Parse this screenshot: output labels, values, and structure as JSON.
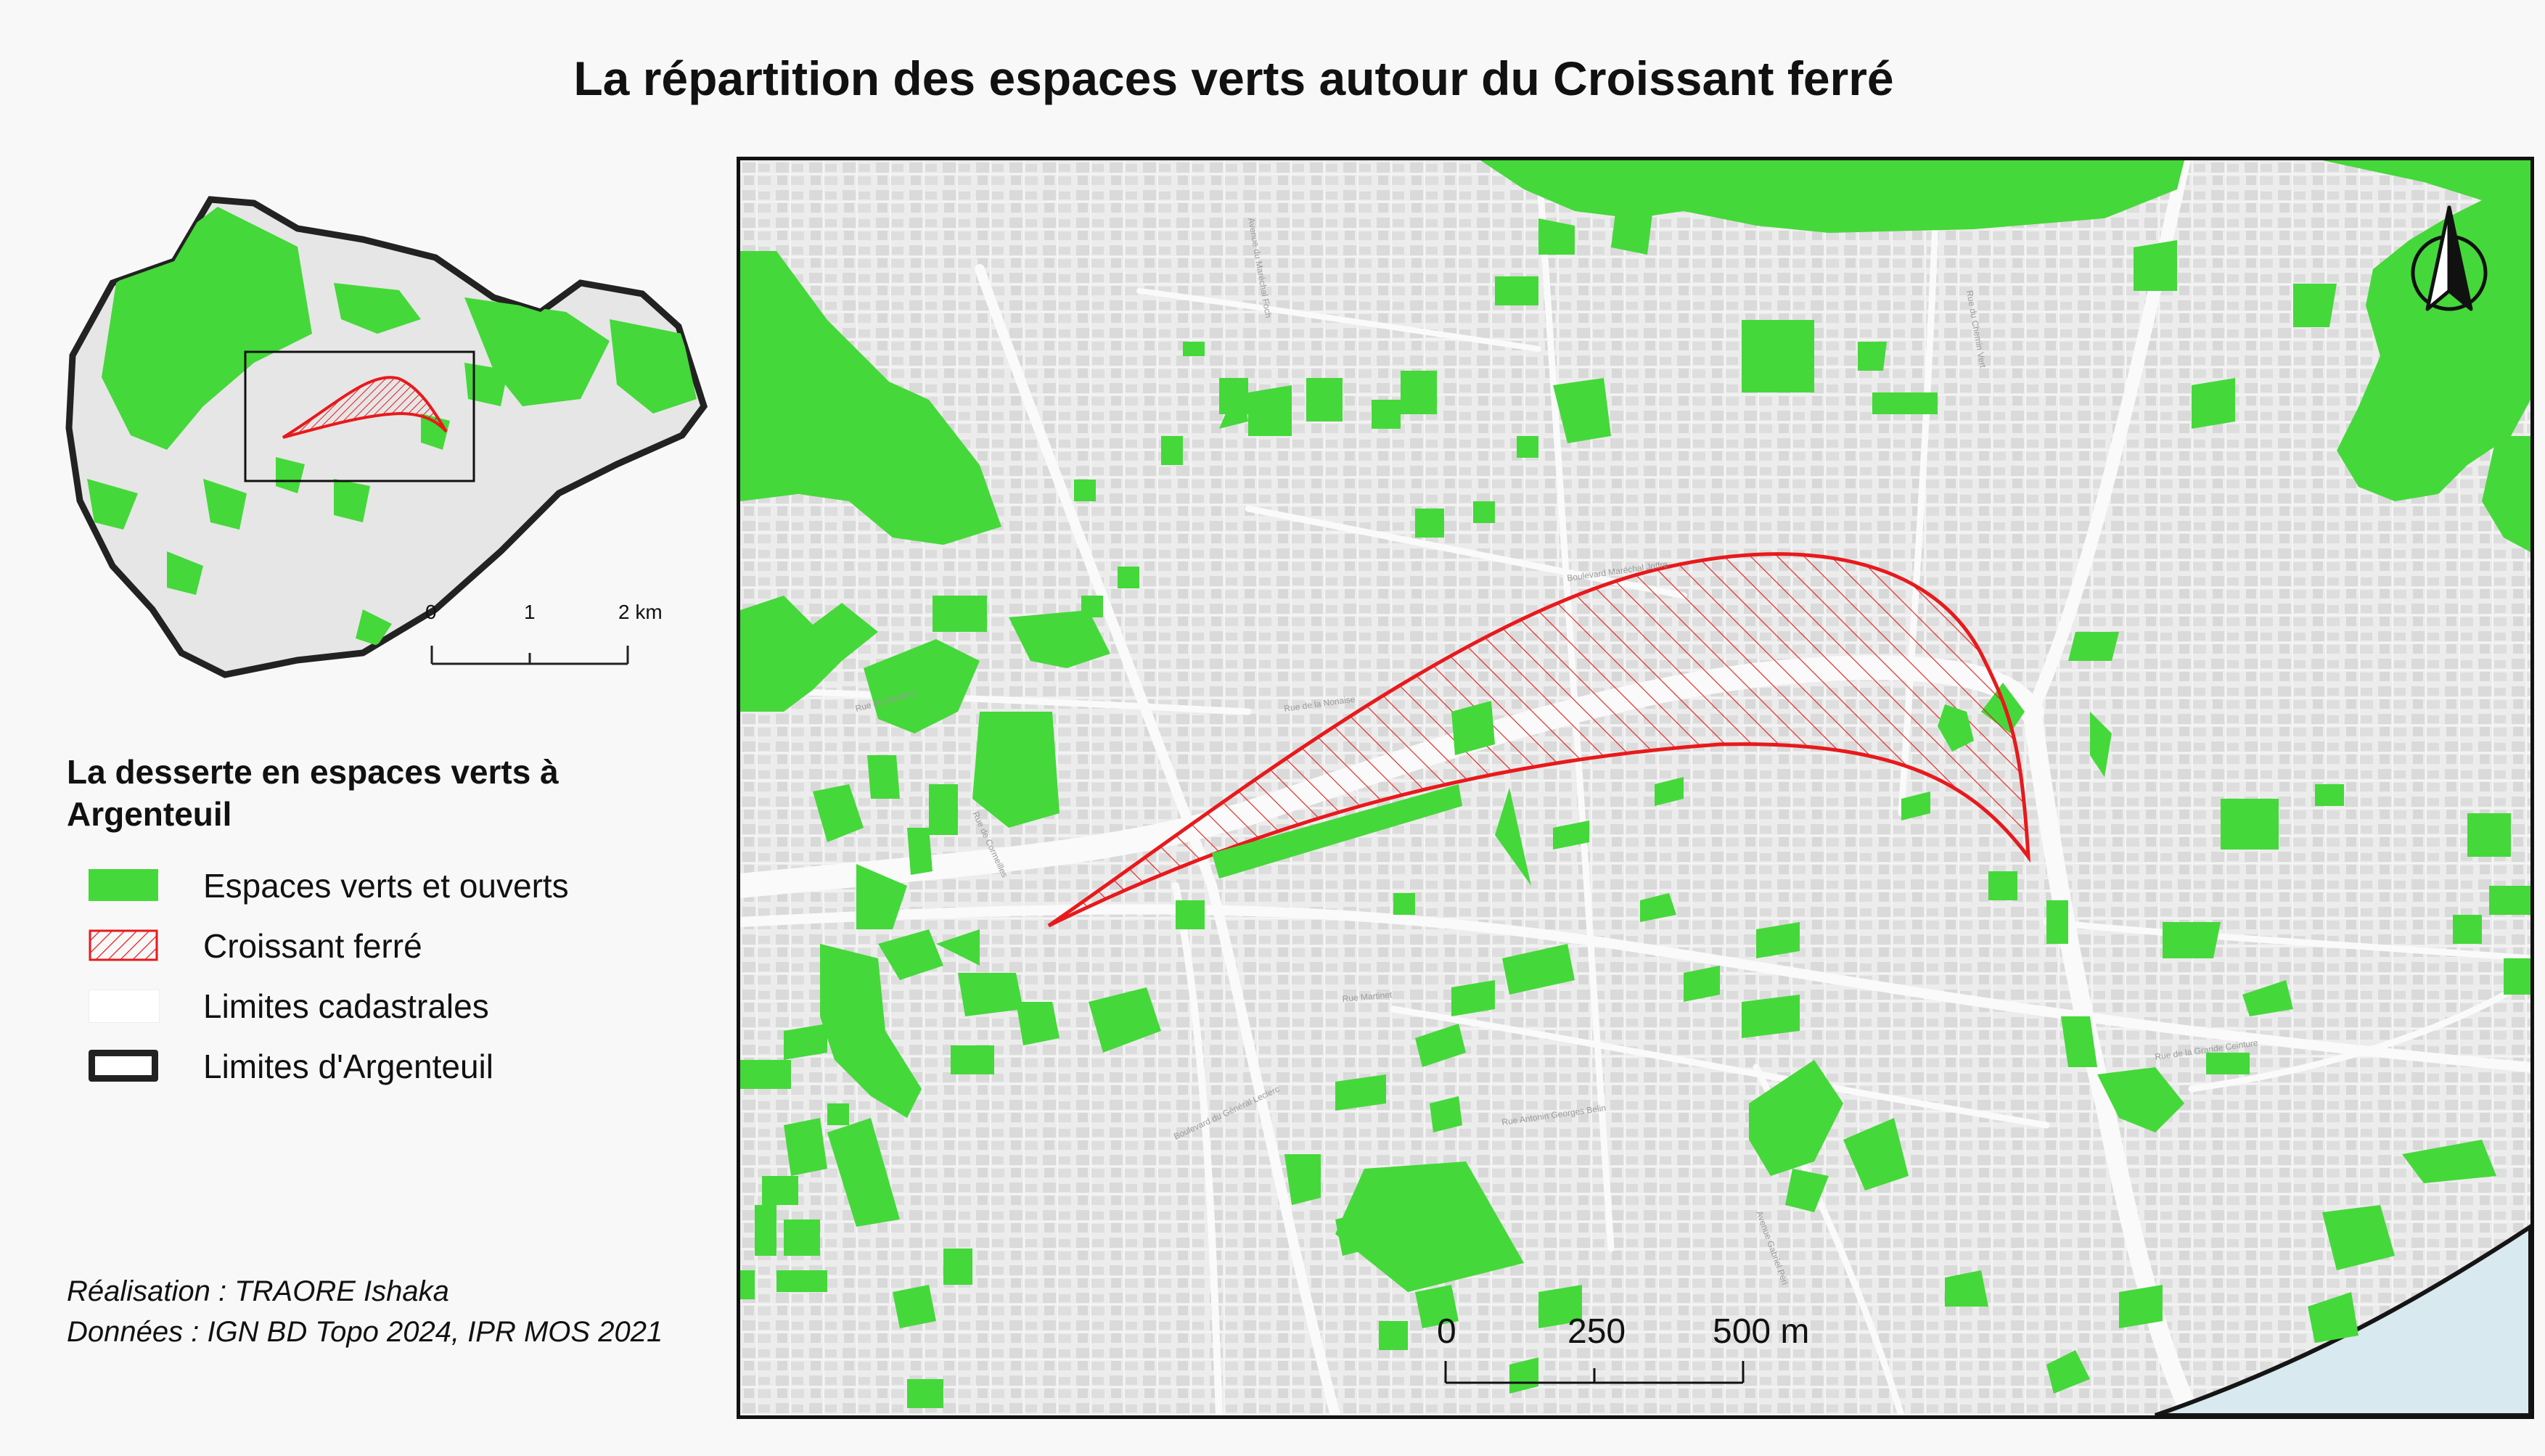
{
  "title": "La répartition des espaces verts autour du Croissant ferré",
  "inset_scale": {
    "labels": [
      "0",
      "1",
      "2 km"
    ]
  },
  "main_scale": {
    "labels": [
      "0",
      "250",
      "500 m"
    ]
  },
  "legend": {
    "title": "La desserte en espaces verts à Argenteuil",
    "items": [
      {
        "label": "Espaces verts et ouverts",
        "swatch": "green-fill"
      },
      {
        "label": "Croissant ferré",
        "swatch": "red-hatch"
      },
      {
        "label": "Limites cadastrales",
        "swatch": "light-outline"
      },
      {
        "label": "Limites d'Argenteuil",
        "swatch": "dark-outline"
      }
    ]
  },
  "credits": {
    "author": "Réalisation : TRAORE Ishaka",
    "sources": "Données : IGN BD Topo 2024, IPR MOS 2021"
  },
  "streets": [
    "Boulevard Maréchal Joffre",
    "Rue de la Nonaise",
    "Rue Martinet",
    "Boulevard du Général Leclerc",
    "Rue Antonin Georges Belin",
    "Rue de la Grande Ceinture",
    "Avenue Gabriel Péri",
    "Rue de Cormeilles",
    "Rue de Carême",
    "Avenue du Maréchal Foch",
    "Rue du Chemin Vert"
  ],
  "colors": {
    "green_space": "#45d83a",
    "croissant": "#e8191c",
    "boundary": "#222222",
    "background": "#ececec",
    "water": "#d8e9ef"
  },
  "icons": [
    "north-arrow-icon"
  ]
}
